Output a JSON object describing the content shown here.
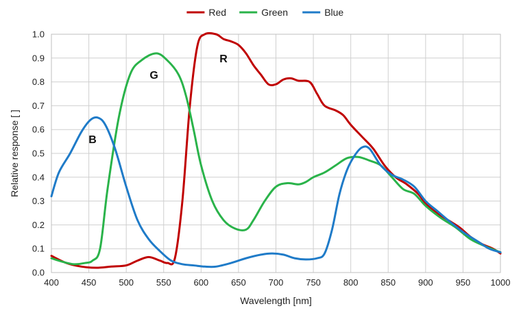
{
  "chart_data": {
    "type": "line",
    "title": "",
    "xlabel": "Wavelength [nm]",
    "ylabel": "Relative response [ ]",
    "xlim": [
      400,
      1000
    ],
    "ylim": [
      0,
      1
    ],
    "grid": true,
    "legend_position": "top-center",
    "x_ticks": [
      "400",
      "450",
      "500",
      "550",
      "600",
      "650",
      "700",
      "750",
      "800",
      "850",
      "900",
      "950",
      "1000"
    ],
    "y_ticks": [
      "0.0",
      "0.1",
      "0.2",
      "0.3",
      "0.4",
      "0.5",
      "0.6",
      "0.7",
      "0.8",
      "0.9",
      "1.0"
    ],
    "series": [
      {
        "name": "Red",
        "color": "#c00000",
        "points": [
          [
            400,
            0.07
          ],
          [
            420,
            0.04
          ],
          [
            440,
            0.025
          ],
          [
            460,
            0.02
          ],
          [
            480,
            0.025
          ],
          [
            500,
            0.03
          ],
          [
            515,
            0.05
          ],
          [
            530,
            0.065
          ],
          [
            545,
            0.05
          ],
          [
            555,
            0.04
          ],
          [
            565,
            0.06
          ],
          [
            575,
            0.3
          ],
          [
            585,
            0.7
          ],
          [
            595,
            0.95
          ],
          [
            605,
            1.0
          ],
          [
            620,
            1.0
          ],
          [
            630,
            0.98
          ],
          [
            640,
            0.97
          ],
          [
            650,
            0.955
          ],
          [
            660,
            0.92
          ],
          [
            670,
            0.87
          ],
          [
            680,
            0.83
          ],
          [
            690,
            0.79
          ],
          [
            700,
            0.79
          ],
          [
            710,
            0.81
          ],
          [
            720,
            0.815
          ],
          [
            730,
            0.805
          ],
          [
            745,
            0.8
          ],
          [
            755,
            0.75
          ],
          [
            765,
            0.7
          ],
          [
            780,
            0.68
          ],
          [
            790,
            0.66
          ],
          [
            800,
            0.62
          ],
          [
            815,
            0.57
          ],
          [
            830,
            0.52
          ],
          [
            845,
            0.45
          ],
          [
            860,
            0.4
          ],
          [
            875,
            0.37
          ],
          [
            890,
            0.33
          ],
          [
            900,
            0.29
          ],
          [
            915,
            0.25
          ],
          [
            930,
            0.22
          ],
          [
            945,
            0.19
          ],
          [
            960,
            0.15
          ],
          [
            975,
            0.12
          ],
          [
            990,
            0.1
          ],
          [
            1000,
            0.08
          ]
        ]
      },
      {
        "name": "Green",
        "color": "#2ab34a",
        "points": [
          [
            400,
            0.06
          ],
          [
            415,
            0.045
          ],
          [
            430,
            0.035
          ],
          [
            445,
            0.04
          ],
          [
            455,
            0.05
          ],
          [
            465,
            0.1
          ],
          [
            475,
            0.35
          ],
          [
            490,
            0.65
          ],
          [
            505,
            0.83
          ],
          [
            520,
            0.89
          ],
          [
            540,
            0.92
          ],
          [
            555,
            0.89
          ],
          [
            570,
            0.83
          ],
          [
            580,
            0.74
          ],
          [
            590,
            0.6
          ],
          [
            600,
            0.45
          ],
          [
            615,
            0.3
          ],
          [
            630,
            0.22
          ],
          [
            645,
            0.185
          ],
          [
            660,
            0.18
          ],
          [
            670,
            0.22
          ],
          [
            685,
            0.3
          ],
          [
            700,
            0.36
          ],
          [
            715,
            0.375
          ],
          [
            730,
            0.37
          ],
          [
            740,
            0.38
          ],
          [
            750,
            0.4
          ],
          [
            765,
            0.42
          ],
          [
            780,
            0.45
          ],
          [
            795,
            0.48
          ],
          [
            810,
            0.485
          ],
          [
            825,
            0.47
          ],
          [
            840,
            0.45
          ],
          [
            855,
            0.4
          ],
          [
            870,
            0.35
          ],
          [
            885,
            0.33
          ],
          [
            900,
            0.28
          ],
          [
            920,
            0.23
          ],
          [
            940,
            0.19
          ],
          [
            960,
            0.14
          ],
          [
            980,
            0.11
          ],
          [
            1000,
            0.085
          ]
        ]
      },
      {
        "name": "Blue",
        "color": "#1f7bc8",
        "points": [
          [
            400,
            0.32
          ],
          [
            410,
            0.42
          ],
          [
            425,
            0.5
          ],
          [
            440,
            0.59
          ],
          [
            452,
            0.64
          ],
          [
            462,
            0.65
          ],
          [
            472,
            0.62
          ],
          [
            485,
            0.52
          ],
          [
            500,
            0.36
          ],
          [
            515,
            0.22
          ],
          [
            530,
            0.14
          ],
          [
            545,
            0.09
          ],
          [
            560,
            0.05
          ],
          [
            575,
            0.035
          ],
          [
            590,
            0.03
          ],
          [
            605,
            0.025
          ],
          [
            620,
            0.025
          ],
          [
            640,
            0.04
          ],
          [
            660,
            0.06
          ],
          [
            680,
            0.075
          ],
          [
            695,
            0.08
          ],
          [
            710,
            0.075
          ],
          [
            725,
            0.06
          ],
          [
            740,
            0.055
          ],
          [
            755,
            0.06
          ],
          [
            765,
            0.08
          ],
          [
            775,
            0.18
          ],
          [
            785,
            0.33
          ],
          [
            795,
            0.43
          ],
          [
            805,
            0.49
          ],
          [
            815,
            0.525
          ],
          [
            825,
            0.52
          ],
          [
            840,
            0.45
          ],
          [
            855,
            0.41
          ],
          [
            870,
            0.39
          ],
          [
            885,
            0.36
          ],
          [
            900,
            0.3
          ],
          [
            915,
            0.26
          ],
          [
            930,
            0.22
          ],
          [
            950,
            0.17
          ],
          [
            970,
            0.13
          ],
          [
            985,
            0.1
          ],
          [
            1000,
            0.085
          ]
        ]
      }
    ],
    "annotations": [
      {
        "text": "R",
        "x": 630,
        "y": 0.9
      },
      {
        "text": "G",
        "x": 537,
        "y": 0.83
      },
      {
        "text": "B",
        "x": 455,
        "y": 0.56
      }
    ]
  }
}
